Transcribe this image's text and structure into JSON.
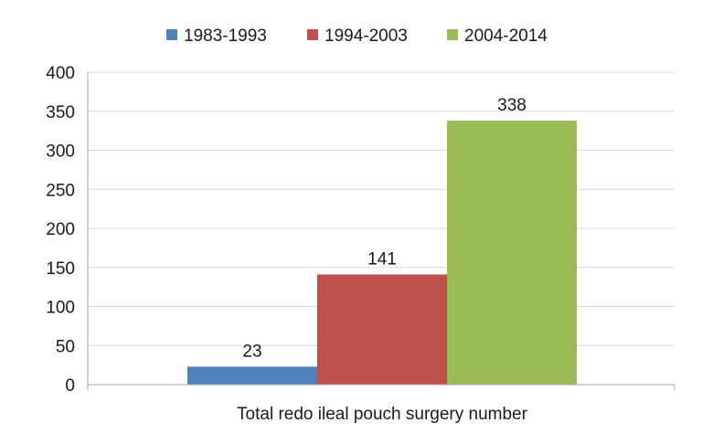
{
  "chart_data": {
    "type": "bar",
    "categories": [
      "Total redo ileal pouch surgery number"
    ],
    "series": [
      {
        "name": "1983-1993",
        "values": [
          23
        ],
        "color": "#4f81bd"
      },
      {
        "name": "1994-2003",
        "values": [
          141
        ],
        "color": "#c0504d"
      },
      {
        "name": "2004-2014",
        "values": [
          338
        ],
        "color": "#9bbb59"
      }
    ],
    "ylim": [
      0,
      400
    ],
    "yticks": [
      0,
      50,
      100,
      150,
      200,
      250,
      300,
      350,
      400
    ],
    "grid": true,
    "legend": "top-center",
    "data_labels": true
  }
}
